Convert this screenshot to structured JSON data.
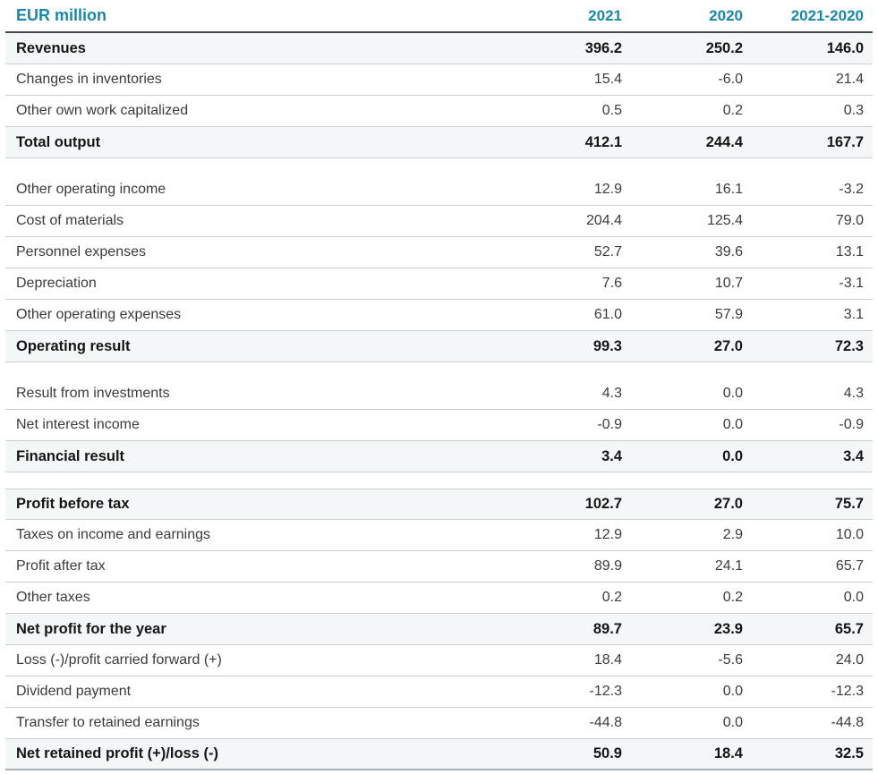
{
  "table": {
    "unit_label": "EUR million",
    "columns": {
      "c1": "2021",
      "c2": "2020",
      "c3": "2021-2020"
    },
    "accent_color": "#1b87a8",
    "total_row_bg": "#f3f7f8",
    "rows": [
      {
        "label": "Revenues",
        "values": [
          "396.2",
          "250.2",
          "146.0"
        ],
        "style": "total"
      },
      {
        "label": "Changes in inventories",
        "values": [
          "15.4",
          "-6.0",
          "21.4"
        ],
        "style": "normal"
      },
      {
        "label": "Other own work capitalized",
        "values": [
          "0.5",
          "0.2",
          "0.3"
        ],
        "style": "normal"
      },
      {
        "label": "Total output",
        "values": [
          "412.1",
          "244.4",
          "167.7"
        ],
        "style": "total"
      },
      {
        "label": "Other operating income",
        "values": [
          "12.9",
          "16.1",
          "-3.2"
        ],
        "style": "normal"
      },
      {
        "label": "Cost of materials",
        "values": [
          "204.4",
          "125.4",
          "79.0"
        ],
        "style": "normal"
      },
      {
        "label": "Personnel expenses",
        "values": [
          "52.7",
          "39.6",
          "13.1"
        ],
        "style": "normal"
      },
      {
        "label": "Depreciation",
        "values": [
          "7.6",
          "10.7",
          "-3.1"
        ],
        "style": "normal"
      },
      {
        "label": "Other operating expenses",
        "values": [
          "61.0",
          "57.9",
          "3.1"
        ],
        "style": "normal"
      },
      {
        "label": "Operating result",
        "values": [
          "99.3",
          "27.0",
          "72.3"
        ],
        "style": "total"
      },
      {
        "label": "Result from investments",
        "values": [
          "4.3",
          "0.0",
          "4.3"
        ],
        "style": "normal"
      },
      {
        "label": "Net interest income",
        "values": [
          "-0.9",
          "0.0",
          "-0.9"
        ],
        "style": "normal"
      },
      {
        "label": "Financial result",
        "values": [
          "3.4",
          "0.0",
          "3.4"
        ],
        "style": "total"
      },
      {
        "label": "Profit before tax",
        "values": [
          "102.7",
          "27.0",
          "75.7"
        ],
        "style": "total"
      },
      {
        "label": "Taxes on income and earnings",
        "values": [
          "12.9",
          "2.9",
          "10.0"
        ],
        "style": "normal"
      },
      {
        "label": "Profit after tax",
        "values": [
          "89.9",
          "24.1",
          "65.7"
        ],
        "style": "normal"
      },
      {
        "label": "Other taxes",
        "values": [
          "0.2",
          "0.2",
          "0.0"
        ],
        "style": "normal"
      },
      {
        "label": "Net profit for the year",
        "values": [
          "89.7",
          "23.9",
          "65.7"
        ],
        "style": "total"
      },
      {
        "label": "Loss (-)/profit carried forward (+)",
        "values": [
          "18.4",
          "-5.6",
          "24.0"
        ],
        "style": "normal"
      },
      {
        "label": "Dividend payment",
        "values": [
          "-12.3",
          "0.0",
          "-12.3"
        ],
        "style": "normal"
      },
      {
        "label": "Transfer to retained earnings",
        "values": [
          "-44.8",
          "0.0",
          "-44.8"
        ],
        "style": "normal"
      },
      {
        "label": "Net retained profit (+)/loss (-)",
        "values": [
          "50.9",
          "18.4",
          "32.5"
        ],
        "style": "total"
      }
    ]
  }
}
